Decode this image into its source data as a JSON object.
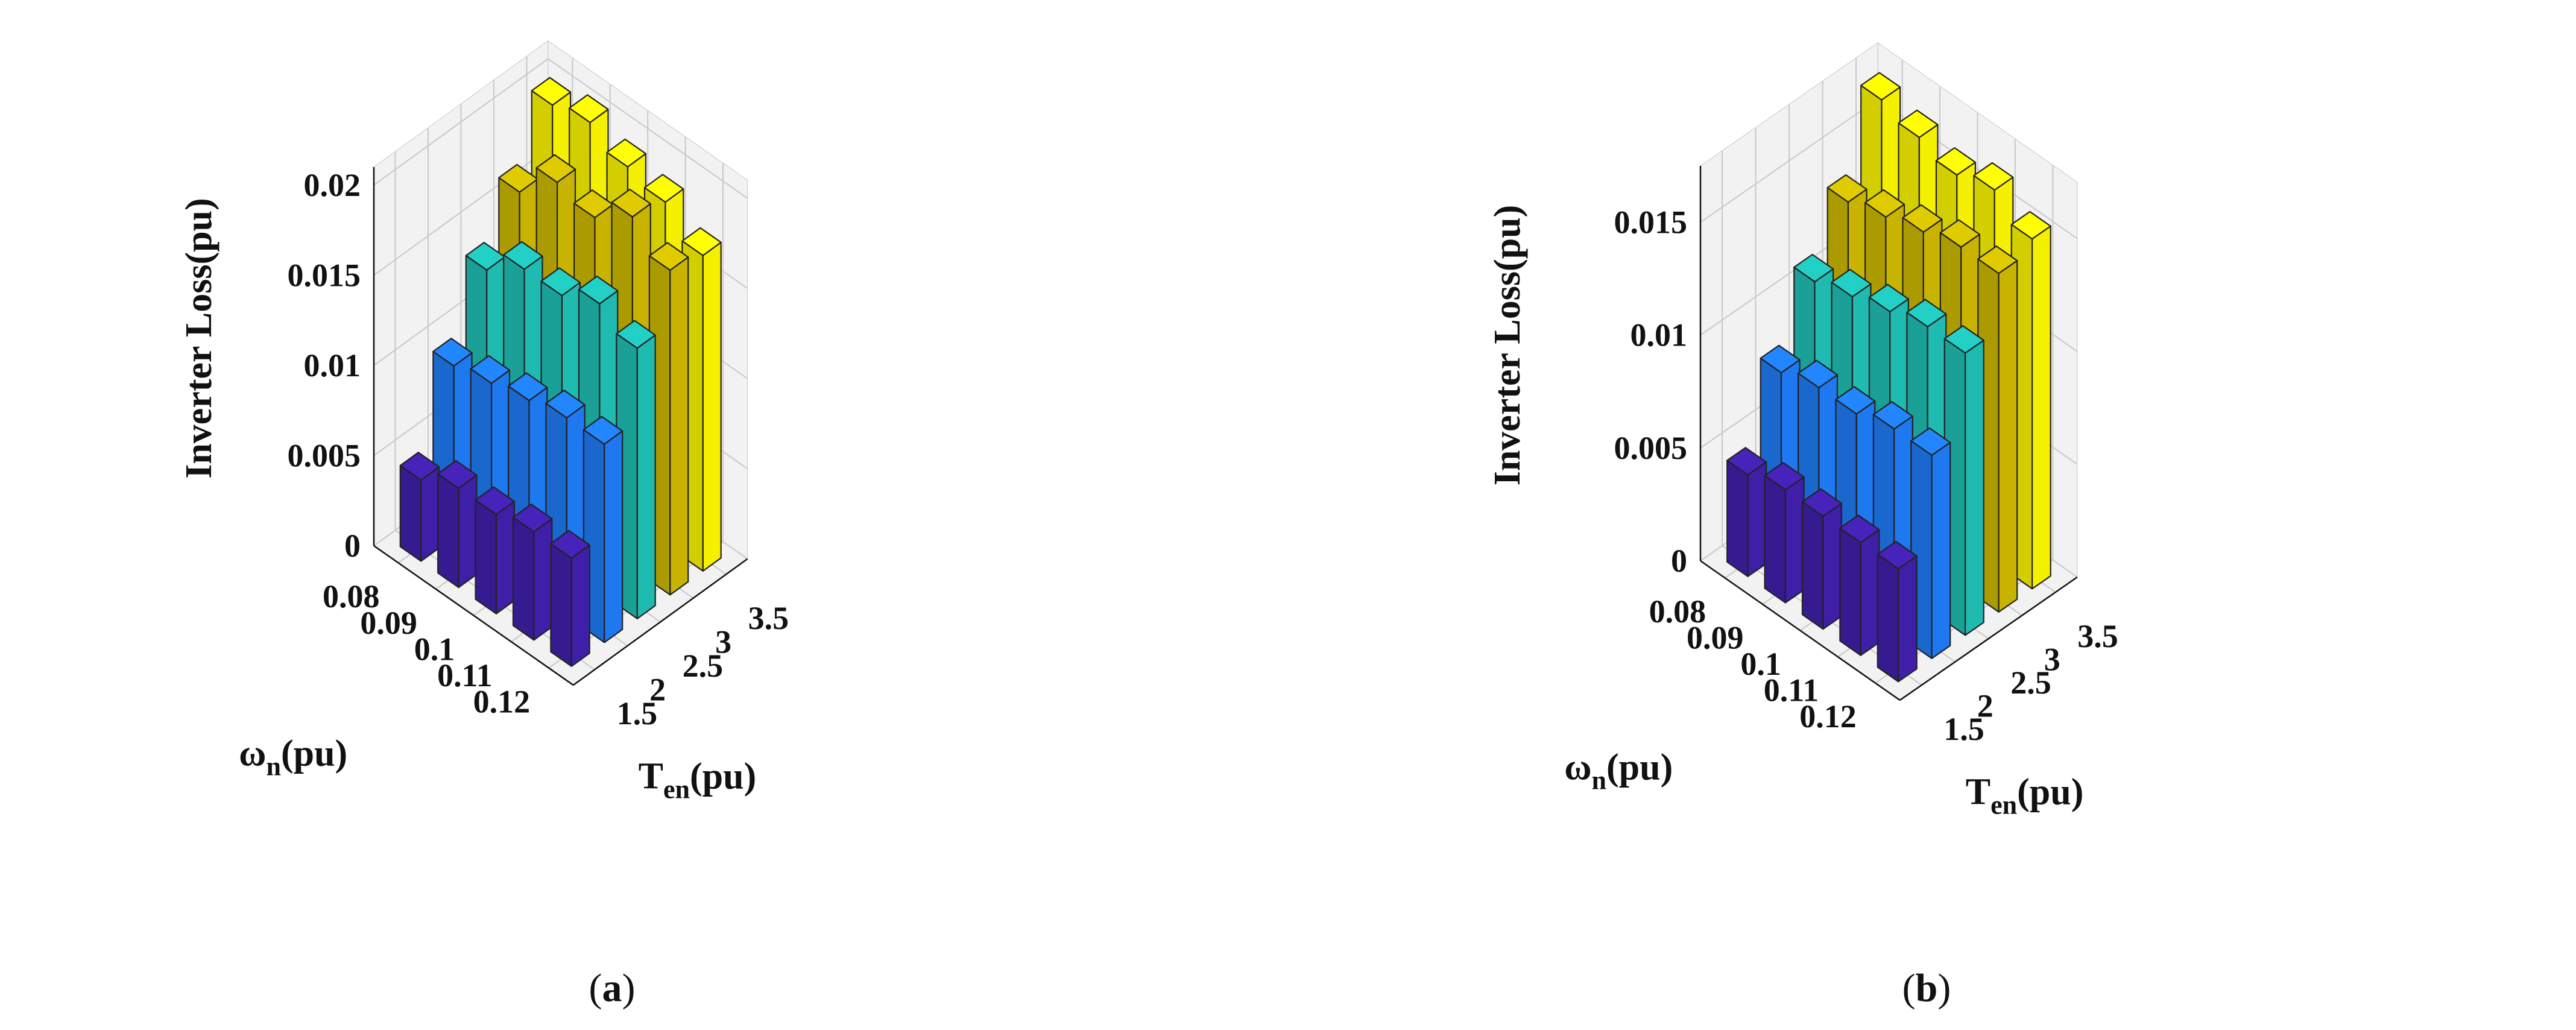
{
  "figure": {
    "colors": {
      "series_1_5": "#3f1fa8",
      "series_2": "#1e78f0",
      "series_2_5": "#1fbab0",
      "series_3": "#c8b400",
      "series_3_5": "#f5f000",
      "edge": "#222222",
      "pane": "#f2f2f2",
      "grid": "#c8c8c8"
    }
  },
  "chart_data": [
    {
      "type": "bar3d",
      "caption_open": "(",
      "caption_letter": "a",
      "caption_close": ")",
      "zlabel": "Inverter Loss(pu)",
      "xlabel_main": "ω",
      "xlabel_sub": "n",
      "xlabel_tail": "(pu)",
      "ylabel_main": "T",
      "ylabel_sub": "en",
      "ylabel_tail": "(pu)",
      "omega_n": [
        "0.08",
        "0.09",
        "0.1",
        "0.11",
        "0.12"
      ],
      "T_en": [
        "1.5",
        "2",
        "2.5",
        "3",
        "3.5"
      ],
      "z_ticks": [
        "0",
        "0.005",
        "0.01",
        "0.015",
        "0.02"
      ],
      "z_tick_values": [
        0,
        0.005,
        0.01,
        0.015,
        0.02
      ],
      "zlim": [
        0,
        0.021
      ],
      "values": [
        [
          0.0045,
          0.0095,
          0.0135,
          0.0165,
          0.02
        ],
        [
          0.0055,
          0.01,
          0.015,
          0.0185,
          0.0205
        ],
        [
          0.0055,
          0.0105,
          0.015,
          0.018,
          0.0195
        ],
        [
          0.006,
          0.011,
          0.016,
          0.0195,
          0.019
        ],
        [
          0.006,
          0.011,
          0.015,
          0.018,
          0.0175
        ]
      ]
    },
    {
      "type": "bar3d",
      "caption_open": "(",
      "caption_letter": "b",
      "caption_close": ")",
      "zlabel": "Inverter Loss(pu)",
      "xlabel_main": "ω",
      "xlabel_sub": "n",
      "xlabel_tail": "(pu)",
      "ylabel_main": "T",
      "ylabel_sub": "en",
      "ylabel_tail": "(pu)",
      "omega_n": [
        "0.08",
        "0.09",
        "0.1",
        "0.11",
        "0.12"
      ],
      "T_en": [
        "1.5",
        "2",
        "2.5",
        "3",
        "3.5"
      ],
      "z_ticks": [
        "0",
        "0.005",
        "0.01",
        "0.015"
      ],
      "z_tick_values": [
        0,
        0.005,
        0.01,
        0.015
      ],
      "zlim": [
        0,
        0.0175
      ],
      "values": [
        [
          0.0045,
          0.008,
          0.011,
          0.0135,
          0.017
        ],
        [
          0.005,
          0.0085,
          0.0115,
          0.014,
          0.0165
        ],
        [
          0.005,
          0.0085,
          0.012,
          0.0145,
          0.016
        ],
        [
          0.005,
          0.009,
          0.0125,
          0.015,
          0.0165
        ],
        [
          0.005,
          0.009,
          0.0125,
          0.015,
          0.0155
        ]
      ]
    }
  ]
}
